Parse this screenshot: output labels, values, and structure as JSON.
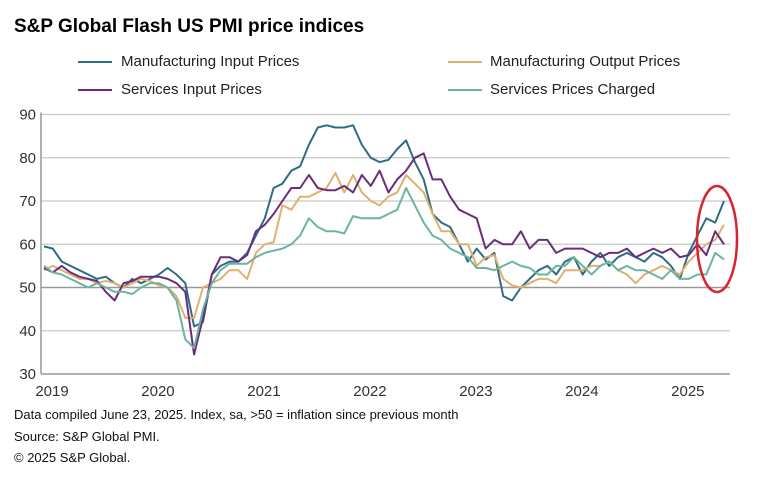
{
  "title": "S&P Global Flash US PMI price indices",
  "footer": [
    "Data compiled June 23, 2025. Index, sa, >50 = inflation since previous month",
    "Source: S&P Global PMI.",
    "© 2025 S&P Global."
  ],
  "chart_data": {
    "type": "line",
    "title": "S&P Global Flash US PMI price indices",
    "x_start": "2019-01",
    "x_end": "2025-06",
    "frequency": "monthly",
    "x_tick_labels": [
      "2019",
      "2020",
      "2021",
      "2022",
      "2023",
      "2024",
      "2025"
    ],
    "y_tick_labels": [
      "30",
      "40",
      "50",
      "60",
      "70",
      "80",
      "90"
    ],
    "ylim": [
      30,
      90
    ],
    "grid": "horizontal",
    "legend": "top",
    "highlight": {
      "shape": "ellipse",
      "color": "#d9232e",
      "around": "2025 latest values"
    },
    "series": [
      {
        "name": "Manufacturing Input Prices",
        "color": "#2e6d86",
        "values": [
          59.5,
          59,
          56,
          55,
          54,
          53,
          52,
          52.5,
          51,
          50,
          52,
          51,
          52,
          53,
          54.5,
          53,
          51,
          41,
          42,
          53,
          55,
          56,
          56,
          58,
          62,
          66,
          73,
          74,
          77,
          78,
          83,
          87,
          87.5,
          87,
          87,
          87.5,
          83,
          80,
          79,
          79.5,
          82,
          84,
          79,
          75,
          67,
          65,
          64,
          60,
          56,
          59,
          56.5,
          58,
          48,
          47,
          50,
          52,
          54,
          55,
          53,
          56,
          57,
          53,
          56,
          58,
          55,
          57,
          58,
          57,
          56,
          58,
          57,
          55,
          52,
          58,
          62,
          66,
          65,
          70
        ]
      },
      {
        "name": "Manufacturing Output Prices",
        "color": "#e0b06e",
        "values": [
          54,
          55,
          54,
          53,
          52,
          52,
          51,
          51.5,
          51,
          50,
          51,
          52,
          51.5,
          50.5,
          50,
          48,
          43,
          43,
          50,
          51,
          52,
          54,
          54,
          52,
          58,
          60,
          60.5,
          69,
          68,
          71,
          71,
          72,
          73,
          76.5,
          72,
          76,
          72,
          70,
          69,
          71,
          72,
          76,
          74,
          72,
          67,
          63,
          63,
          60,
          60,
          55,
          57,
          57.5,
          52,
          50.5,
          50,
          51,
          52,
          52,
          51,
          54,
          54,
          54,
          55,
          55,
          56,
          54,
          53,
          51,
          53,
          54,
          55,
          54,
          53,
          56,
          58,
          60,
          61,
          64.5
        ]
      },
      {
        "name": "Services Input Prices",
        "color": "#6b2d7a",
        "values": [
          54.5,
          53.5,
          55,
          53.5,
          52.5,
          52,
          51.5,
          49,
          47,
          51,
          51.5,
          52.5,
          52.5,
          52.5,
          52,
          51,
          49,
          34.5,
          43,
          53,
          57,
          57,
          56,
          57.5,
          63,
          64.5,
          67,
          70,
          73,
          73,
          76,
          73,
          72.5,
          72.5,
          73.5,
          72,
          76,
          73.5,
          77,
          72,
          75,
          77,
          80,
          81,
          75,
          75,
          71,
          68,
          67,
          66,
          59,
          61,
          60,
          60,
          63,
          59,
          61,
          61,
          58,
          59,
          59,
          59,
          58,
          57,
          58,
          58,
          59,
          57,
          58,
          59,
          58,
          59,
          57,
          57.5,
          60,
          57.5,
          63,
          60
        ]
      },
      {
        "name": "Services Prices Charged",
        "color": "#6bb5a0",
        "values": [
          55,
          53.5,
          53,
          52,
          51,
          50,
          51,
          50,
          49,
          49,
          48.5,
          50,
          51,
          51,
          50,
          47,
          38,
          36,
          45,
          51,
          54,
          55.5,
          55.5,
          55.5,
          57,
          58,
          58.5,
          59,
          60,
          62,
          66,
          64,
          63,
          63,
          62.5,
          66.5,
          66,
          66,
          66,
          67,
          68,
          73,
          69,
          65,
          62,
          61,
          59,
          58,
          57,
          54.5,
          54.5,
          54,
          55,
          56,
          55,
          54.5,
          53,
          53,
          55,
          55,
          57,
          55,
          53,
          55,
          56,
          54,
          55,
          54,
          54,
          53,
          52,
          54,
          52,
          52,
          53,
          53,
          58,
          56.5
        ]
      }
    ]
  }
}
